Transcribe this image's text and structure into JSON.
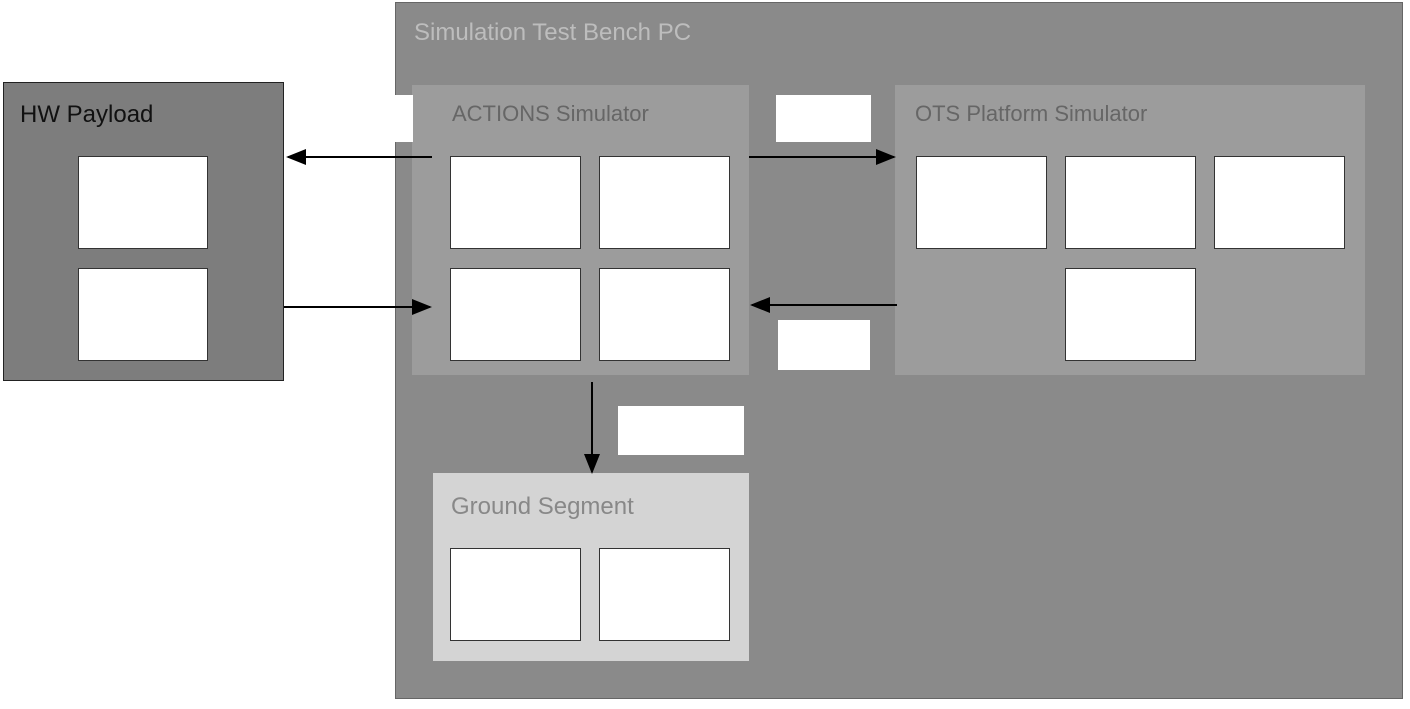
{
  "hw_payload": {
    "title": "HW Payload"
  },
  "test_bench": {
    "title": "Simulation Test Bench PC"
  },
  "actions_simulator": {
    "title": "ACTIONS Simulator"
  },
  "ots_simulator": {
    "title": "OTS Platform Simulator"
  },
  "ground_segment": {
    "title": "Ground Segment"
  }
}
